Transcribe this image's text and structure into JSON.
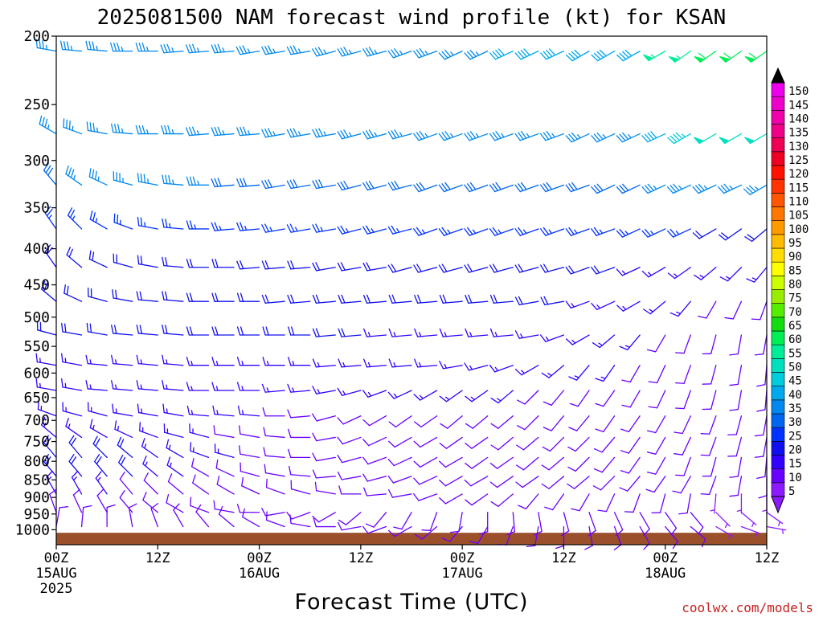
{
  "chart_data": {
    "type": "wind-barb-profile",
    "title": "2025081500 NAM forecast wind profile (kt) for KSAN",
    "xlabel": "Forecast Time (UTC)",
    "ylabel": "",
    "y_log_scale": true,
    "ylim": [
      1050,
      200
    ],
    "xlim": [
      0,
      84
    ],
    "y_ticks": [
      200,
      250,
      300,
      350,
      400,
      450,
      500,
      550,
      600,
      650,
      700,
      750,
      800,
      850,
      900,
      950,
      1000
    ],
    "x_ticks": [
      {
        "hour": 0,
        "label": "00Z",
        "date": "15AUG",
        "year": "2025"
      },
      {
        "hour": 12,
        "label": "12Z",
        "date": "",
        "year": ""
      },
      {
        "hour": 24,
        "label": "00Z",
        "date": "16AUG",
        "year": ""
      },
      {
        "hour": 36,
        "label": "12Z",
        "date": "",
        "year": ""
      },
      {
        "hour": 48,
        "label": "00Z",
        "date": "17AUG",
        "year": ""
      },
      {
        "hour": 60,
        "label": "12Z",
        "date": "",
        "year": ""
      },
      {
        "hour": 72,
        "label": "00Z",
        "date": "18AUG",
        "year": ""
      },
      {
        "hour": 84,
        "label": "12Z",
        "date": "",
        "year": ""
      }
    ],
    "forecast_hours": [
      0,
      3,
      6,
      9,
      12,
      15,
      18,
      21,
      24,
      27,
      30,
      33,
      36,
      39,
      42,
      45,
      48,
      51,
      54,
      57,
      60,
      63,
      66,
      69,
      72,
      75,
      78,
      81,
      84
    ],
    "levels": [
      {
        "p": 210,
        "dir": [
          280,
          275,
          275,
          270,
          270,
          265,
          265,
          265,
          260,
          260,
          260,
          255,
          255,
          255,
          250,
          250,
          245,
          245,
          245,
          245,
          245,
          240,
          240,
          240,
          240,
          235,
          235,
          235,
          235
        ],
        "spd": [
          35,
          35,
          35,
          35,
          35,
          35,
          35,
          35,
          35,
          35,
          35,
          35,
          35,
          35,
          35,
          35,
          35,
          35,
          40,
          40,
          40,
          40,
          40,
          40,
          55,
          55,
          60,
          60,
          60
        ]
      },
      {
        "p": 275,
        "dir": [
          300,
          290,
          280,
          275,
          270,
          270,
          265,
          265,
          265,
          260,
          260,
          260,
          255,
          255,
          255,
          250,
          250,
          250,
          250,
          250,
          250,
          245,
          245,
          245,
          245,
          240,
          240,
          240,
          240
        ],
        "spd": [
          35,
          35,
          35,
          35,
          35,
          35,
          35,
          35,
          35,
          35,
          35,
          35,
          35,
          35,
          35,
          35,
          35,
          35,
          35,
          35,
          35,
          35,
          35,
          35,
          40,
          45,
          50,
          50,
          50
        ]
      },
      {
        "p": 325,
        "dir": [
          320,
          305,
          295,
          285,
          280,
          275,
          270,
          265,
          265,
          260,
          260,
          260,
          255,
          255,
          255,
          250,
          250,
          250,
          250,
          250,
          250,
          250,
          245,
          245,
          245,
          245,
          245,
          245,
          240
        ],
        "spd": [
          30,
          35,
          35,
          35,
          35,
          35,
          35,
          30,
          30,
          30,
          30,
          30,
          30,
          30,
          30,
          30,
          30,
          30,
          30,
          30,
          30,
          30,
          30,
          30,
          35,
          35,
          35,
          35,
          35
        ]
      },
      {
        "p": 375,
        "dir": [
          325,
          315,
          300,
          290,
          280,
          275,
          270,
          265,
          265,
          260,
          260,
          260,
          255,
          255,
          255,
          250,
          250,
          250,
          250,
          250,
          250,
          250,
          250,
          245,
          245,
          245,
          240,
          235,
          230
        ],
        "spd": [
          25,
          25,
          25,
          25,
          25,
          25,
          25,
          25,
          25,
          25,
          25,
          25,
          25,
          25,
          25,
          25,
          25,
          25,
          25,
          25,
          25,
          25,
          25,
          25,
          25,
          25,
          20,
          20,
          20
        ]
      },
      {
        "p": 425,
        "dir": [
          325,
          310,
          295,
          285,
          280,
          275,
          270,
          270,
          265,
          265,
          265,
          260,
          260,
          260,
          255,
          255,
          255,
          255,
          255,
          255,
          255,
          250,
          250,
          245,
          240,
          235,
          230,
          225,
          220
        ],
        "spd": [
          20,
          20,
          20,
          20,
          20,
          20,
          20,
          20,
          20,
          20,
          20,
          20,
          20,
          20,
          20,
          20,
          20,
          20,
          20,
          20,
          20,
          20,
          20,
          15,
          15,
          15,
          15,
          15,
          15
        ]
      },
      {
        "p": 475,
        "dir": [
          310,
          295,
          285,
          280,
          275,
          275,
          270,
          270,
          270,
          265,
          265,
          265,
          265,
          265,
          265,
          265,
          265,
          265,
          265,
          260,
          260,
          250,
          245,
          240,
          230,
          220,
          210,
          205,
          200
        ],
        "spd": [
          20,
          20,
          20,
          20,
          20,
          20,
          20,
          20,
          20,
          20,
          20,
          20,
          20,
          20,
          20,
          20,
          20,
          20,
          20,
          20,
          20,
          15,
          15,
          15,
          15,
          15,
          10,
          10,
          10
        ]
      },
      {
        "p": 530,
        "dir": [
          285,
          280,
          280,
          275,
          275,
          275,
          270,
          270,
          270,
          270,
          270,
          265,
          265,
          265,
          265,
          265,
          265,
          265,
          265,
          260,
          250,
          240,
          230,
          220,
          210,
          200,
          195,
          190,
          190
        ],
        "spd": [
          20,
          20,
          20,
          20,
          20,
          20,
          20,
          20,
          20,
          20,
          20,
          20,
          20,
          15,
          15,
          15,
          15,
          15,
          15,
          15,
          15,
          15,
          15,
          15,
          10,
          10,
          10,
          10,
          10
        ]
      },
      {
        "p": 585,
        "dir": [
          280,
          280,
          275,
          275,
          275,
          275,
          270,
          270,
          270,
          270,
          270,
          265,
          265,
          265,
          265,
          265,
          260,
          255,
          250,
          240,
          230,
          220,
          215,
          210,
          205,
          200,
          195,
          190,
          185
        ],
        "spd": [
          15,
          15,
          15,
          15,
          15,
          15,
          15,
          15,
          15,
          15,
          15,
          15,
          15,
          15,
          15,
          15,
          15,
          15,
          15,
          15,
          15,
          15,
          15,
          10,
          10,
          10,
          10,
          10,
          10
        ]
      },
      {
        "p": 635,
        "dir": [
          280,
          280,
          275,
          275,
          275,
          275,
          270,
          270,
          270,
          265,
          265,
          260,
          255,
          250,
          245,
          240,
          235,
          235,
          230,
          225,
          220,
          215,
          215,
          210,
          205,
          200,
          195,
          190,
          185
        ],
        "spd": [
          15,
          15,
          15,
          15,
          15,
          15,
          15,
          15,
          15,
          15,
          15,
          15,
          15,
          15,
          15,
          15,
          15,
          15,
          15,
          10,
          10,
          10,
          10,
          10,
          10,
          10,
          10,
          10,
          10
        ]
      },
      {
        "p": 690,
        "dir": [
          290,
          285,
          285,
          280,
          280,
          280,
          275,
          275,
          275,
          270,
          265,
          255,
          245,
          240,
          235,
          235,
          230,
          230,
          230,
          225,
          220,
          220,
          215,
          215,
          210,
          205,
          200,
          195,
          190
        ],
        "spd": [
          15,
          15,
          15,
          15,
          15,
          15,
          15,
          15,
          15,
          10,
          10,
          10,
          10,
          10,
          10,
          10,
          10,
          10,
          10,
          10,
          10,
          10,
          10,
          10,
          10,
          10,
          10,
          10,
          10
        ]
      },
      {
        "p": 740,
        "dir": [
          310,
          305,
          300,
          295,
          290,
          285,
          285,
          280,
          280,
          275,
          270,
          260,
          250,
          245,
          240,
          240,
          235,
          235,
          230,
          230,
          225,
          225,
          220,
          215,
          210,
          205,
          200,
          195,
          190
        ],
        "spd": [
          15,
          15,
          15,
          15,
          15,
          15,
          15,
          10,
          10,
          10,
          10,
          10,
          10,
          10,
          10,
          10,
          10,
          10,
          10,
          10,
          10,
          10,
          10,
          10,
          10,
          10,
          10,
          10,
          10
        ]
      },
      {
        "p": 790,
        "dir": [
          320,
          320,
          315,
          310,
          305,
          300,
          290,
          285,
          280,
          275,
          270,
          260,
          255,
          250,
          245,
          240,
          240,
          235,
          235,
          230,
          230,
          225,
          220,
          215,
          210,
          200,
          195,
          190,
          185
        ],
        "spd": [
          20,
          20,
          20,
          20,
          15,
          15,
          15,
          15,
          10,
          10,
          10,
          10,
          10,
          10,
          10,
          10,
          10,
          10,
          10,
          10,
          10,
          10,
          10,
          10,
          10,
          10,
          10,
          10,
          10
        ]
      },
      {
        "p": 840,
        "dir": [
          320,
          320,
          320,
          315,
          310,
          305,
          300,
          295,
          285,
          280,
          275,
          265,
          260,
          255,
          250,
          245,
          240,
          240,
          235,
          235,
          230,
          230,
          225,
          220,
          215,
          210,
          200,
          190,
          180
        ],
        "spd": [
          20,
          20,
          20,
          20,
          15,
          15,
          10,
          10,
          10,
          10,
          10,
          10,
          10,
          10,
          10,
          10,
          10,
          10,
          10,
          10,
          10,
          10,
          10,
          10,
          10,
          10,
          10,
          10,
          10
        ]
      },
      {
        "p": 890,
        "dir": [
          330,
          330,
          325,
          320,
          315,
          310,
          305,
          300,
          295,
          290,
          285,
          280,
          270,
          265,
          260,
          250,
          240,
          235,
          230,
          220,
          215,
          210,
          205,
          200,
          195,
          190,
          185,
          180,
          180
        ],
        "spd": [
          15,
          15,
          15,
          10,
          10,
          10,
          10,
          10,
          10,
          10,
          10,
          10,
          10,
          10,
          10,
          10,
          10,
          10,
          10,
          10,
          10,
          10,
          10,
          10,
          10,
          10,
          5,
          5,
          5
        ]
      },
      {
        "p": 945,
        "dir": [
          340,
          335,
          330,
          320,
          310,
          300,
          290,
          280,
          270,
          260,
          250,
          240,
          230,
          220,
          210,
          200,
          190,
          180,
          175,
          170,
          165,
          160,
          155,
          150,
          145,
          140,
          135,
          130,
          125
        ],
        "spd": [
          10,
          10,
          10,
          10,
          10,
          10,
          10,
          10,
          10,
          10,
          10,
          10,
          10,
          10,
          10,
          10,
          10,
          10,
          10,
          10,
          10,
          10,
          10,
          10,
          10,
          10,
          5,
          5,
          5
        ]
      },
      {
        "p": 990,
        "dir": [
          10,
          5,
          360,
          350,
          340,
          330,
          320,
          310,
          300,
          290,
          280,
          270,
          260,
          250,
          240,
          230,
          220,
          210,
          200,
          190,
          180,
          170,
          160,
          150,
          140,
          130,
          120,
          110,
          100
        ],
        "spd": [
          10,
          10,
          10,
          10,
          10,
          10,
          10,
          10,
          10,
          10,
          10,
          10,
          10,
          10,
          10,
          10,
          10,
          10,
          10,
          10,
          10,
          10,
          10,
          10,
          10,
          10,
          5,
          5,
          5
        ]
      }
    ],
    "surface_pressure": 1010,
    "surface_color": "#9b4f2a",
    "colorbar": {
      "values": [
        5,
        10,
        15,
        20,
        25,
        30,
        35,
        40,
        45,
        50,
        55,
        60,
        65,
        70,
        75,
        80,
        85,
        90,
        95,
        100,
        105,
        110,
        115,
        120,
        125,
        130,
        135,
        140,
        145,
        150
      ],
      "colors": [
        "#8c1aff",
        "#6a00ff",
        "#3300ff",
        "#1010ee",
        "#0033ff",
        "#0066ee",
        "#0088ee",
        "#00a8ee",
        "#00ccdd",
        "#00e0c0",
        "#00ee99",
        "#00ee55",
        "#11dd11",
        "#55ee00",
        "#99ee00",
        "#ccff00",
        "#ffff00",
        "#ffdd00",
        "#ffbb00",
        "#ff9900",
        "#ff7700",
        "#ff5500",
        "#ff3300",
        "#ff1100",
        "#ee0022",
        "#ee0055",
        "#ee0088",
        "#ee00aa",
        "#ee00cc",
        "#ee00ee"
      ]
    }
  },
  "footer": {
    "credit": "coolwx.com/models"
  }
}
